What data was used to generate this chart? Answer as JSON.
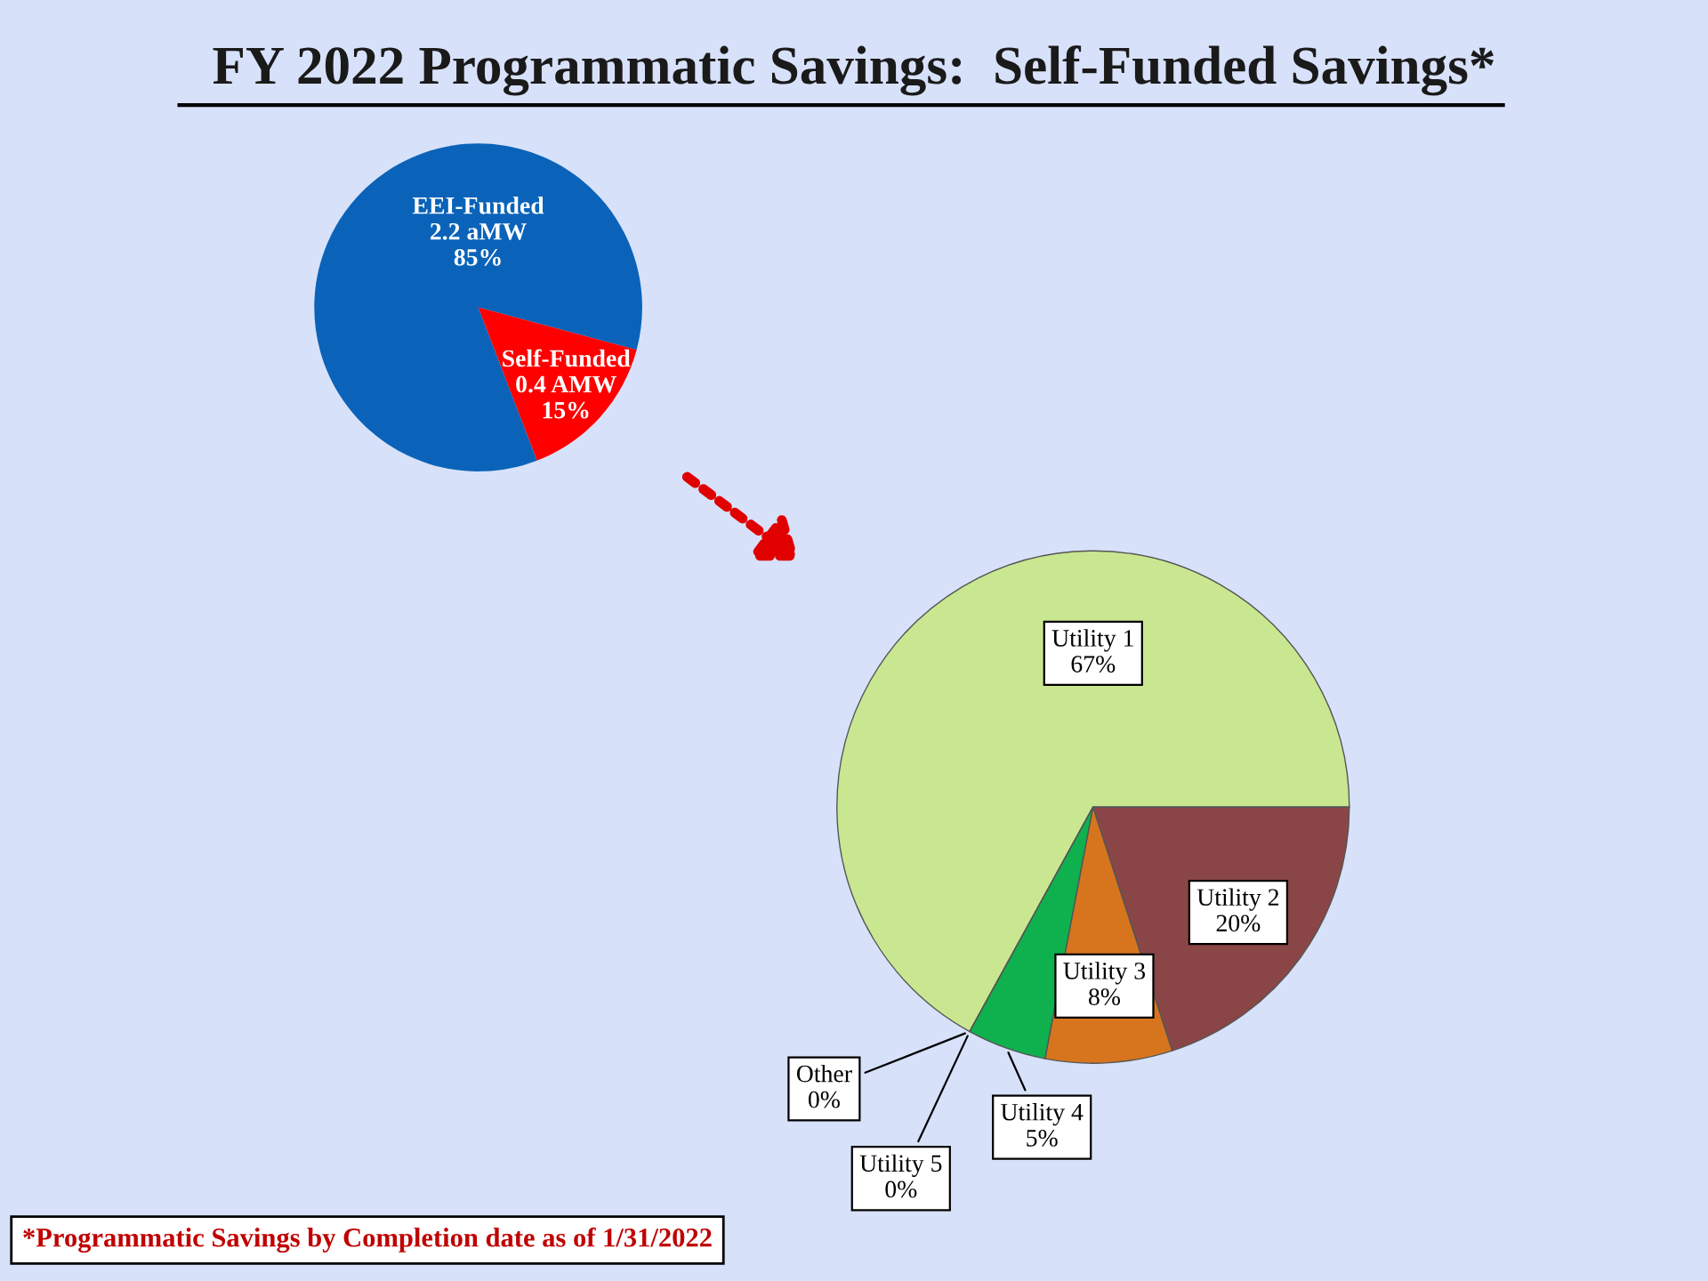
{
  "chart_data": [
    {
      "type": "pie",
      "title": "FY 2022 Programmatic Savings:  Self-Funded Savings*",
      "categories": [
        "EEI-Funded",
        "Self-Funded"
      ],
      "values": [
        85,
        15
      ],
      "colors": [
        "#0a63b8",
        "#ff0000"
      ],
      "value_labels": [
        "2.2 aMW\n85%",
        "0.4 AMW\n15%"
      ]
    },
    {
      "type": "pie",
      "categories": [
        "Utility 1",
        "Other",
        "Utility 5",
        "Utility 4",
        "Utility 3",
        "Utility 2"
      ],
      "values": [
        67,
        0,
        0,
        5,
        8,
        20
      ],
      "colors": [
        "#c9e790",
        "#7a5a1e",
        "#1e6b35",
        "#0fb04e",
        "#d7751e",
        "#8a4646"
      ],
      "value_labels": [
        "67%",
        "0%",
        "0%",
        "5%",
        "8%",
        "20%"
      ],
      "annotations": [
        "*Programmatic Savings by Completion date as of 1/31/2022"
      ]
    }
  ]
}
